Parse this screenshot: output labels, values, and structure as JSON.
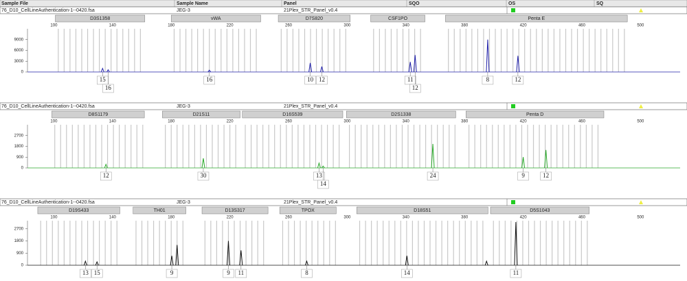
{
  "header": {
    "columns": [
      "Sample File",
      "Sample Name",
      "Panel",
      "SQO",
      "OS",
      "SQ"
    ]
  },
  "panels": [
    {
      "sample_file": "76_D10_CellLineAuthentication-1--0420.fsa",
      "sample_name": "JEG-3",
      "panel": "21Plex_STR_Panel_v0.4",
      "color": "#1f1fa8",
      "xlim": [
        82,
        527
      ],
      "xticks": [
        100,
        140,
        180,
        220,
        260,
        300,
        340,
        380,
        420,
        460,
        500
      ],
      "ylim": [
        0,
        12000
      ],
      "yticks": [
        0,
        3000,
        6000,
        9000
      ],
      "loci": [
        {
          "name": "D3S1358",
          "range": [
            101,
            162
          ]
        },
        {
          "name": "vWA",
          "range": [
            180,
            241
          ]
        },
        {
          "name": "D7S820",
          "range": [
            253,
            302
          ]
        },
        {
          "name": "CSF1PO",
          "range": [
            316,
            353
          ]
        },
        {
          "name": "Penta E",
          "range": [
            367,
            491
          ]
        }
      ],
      "peaks": [
        {
          "size": 133.2,
          "height": 1000,
          "allele": "15"
        },
        {
          "size": 137,
          "height": 600,
          "allele": "16"
        },
        {
          "size": 206,
          "height": 500,
          "allele": "16"
        },
        {
          "size": 274.8,
          "height": 2500,
          "allele": "10"
        },
        {
          "size": 282.7,
          "height": 1500,
          "allele": "12"
        },
        {
          "size": 343,
          "height": 2800,
          "allele": "11"
        },
        {
          "size": 346.3,
          "height": 4700,
          "allele": "12"
        },
        {
          "size": 395.8,
          "height": 9000,
          "allele": "8"
        },
        {
          "size": 416.4,
          "height": 4500,
          "allele": "12"
        }
      ]
    },
    {
      "sample_file": "76_D10_CellLineAuthentication-1--0420.fsa",
      "sample_name": "JEG-3",
      "panel": "21Plex_STR_Panel_v0.4",
      "color": "#2aa82a",
      "xlim": [
        82,
        527
      ],
      "xticks": [
        100,
        140,
        180,
        220,
        260,
        300,
        340,
        380,
        420,
        460,
        500
      ],
      "ylim": [
        0,
        3600
      ],
      "yticks": [
        0,
        900,
        1800,
        2700
      ],
      "loci": [
        {
          "name": "D8S1179",
          "range": [
            98.6,
            161.7
          ]
        },
        {
          "name": "D21S11",
          "range": [
            174,
            227
          ]
        },
        {
          "name": "D16S539",
          "range": [
            228.5,
            297
          ]
        },
        {
          "name": "D2S1338",
          "range": [
            299.5,
            374
          ]
        },
        {
          "name": "Penta D",
          "range": [
            381,
            475
          ]
        }
      ],
      "peaks": [
        {
          "size": 135.5,
          "height": 300,
          "allele": "12"
        },
        {
          "size": 201.9,
          "height": 800,
          "allele": "30"
        },
        {
          "size": 280.8,
          "height": 400,
          "allele": "13"
        },
        {
          "size": 283.6,
          "height": 150,
          "allele": "14"
        },
        {
          "size": 358.4,
          "height": 2000,
          "allele": "24"
        },
        {
          "size": 420,
          "height": 900,
          "allele": "9"
        },
        {
          "size": 435.5,
          "height": 1500,
          "allele": "12"
        }
      ]
    },
    {
      "sample_file": "76_D10_CellLineAuthentication-1--0420.fsa",
      "sample_name": "JEG-3",
      "panel": "21Plex_STR_Panel_v0.4",
      "color": "#111111",
      "xlim": [
        82,
        527
      ],
      "xticks": [
        100,
        140,
        180,
        220,
        260,
        300,
        340,
        380,
        420,
        460,
        500
      ],
      "ylim": [
        0,
        3300
      ],
      "yticks": [
        0,
        900,
        1800,
        2700
      ],
      "loci": [
        {
          "name": "D19S433",
          "range": [
            89,
            145
          ]
        },
        {
          "name": "TH01",
          "range": [
            154,
            190
          ]
        },
        {
          "name": "D13S317",
          "range": [
            201,
            246
          ]
        },
        {
          "name": "TPOX",
          "range": [
            254,
            292.5
          ]
        },
        {
          "name": "D18S51",
          "range": [
            306.5,
            396
          ]
        },
        {
          "name": "D5S1043",
          "range": [
            397.7,
            465
          ]
        }
      ],
      "peaks": [
        {
          "size": 121.5,
          "height": 300,
          "allele": "13"
        },
        {
          "size": 129.4,
          "height": 250,
          "allele": "15"
        },
        {
          "size": 180.4,
          "height": 700,
          "allele": "9"
        },
        {
          "size": 184,
          "height": 1500,
          "allele": null
        },
        {
          "size": 219,
          "height": 1800,
          "allele": "9"
        },
        {
          "size": 227.6,
          "height": 1100,
          "allele": "11"
        },
        {
          "size": 272.4,
          "height": 300,
          "allele": "8"
        },
        {
          "size": 340.7,
          "height": 700,
          "allele": "14"
        },
        {
          "size": 395,
          "height": 300,
          "allele": null
        },
        {
          "size": 415,
          "height": 3200,
          "allele": "11"
        }
      ]
    }
  ]
}
